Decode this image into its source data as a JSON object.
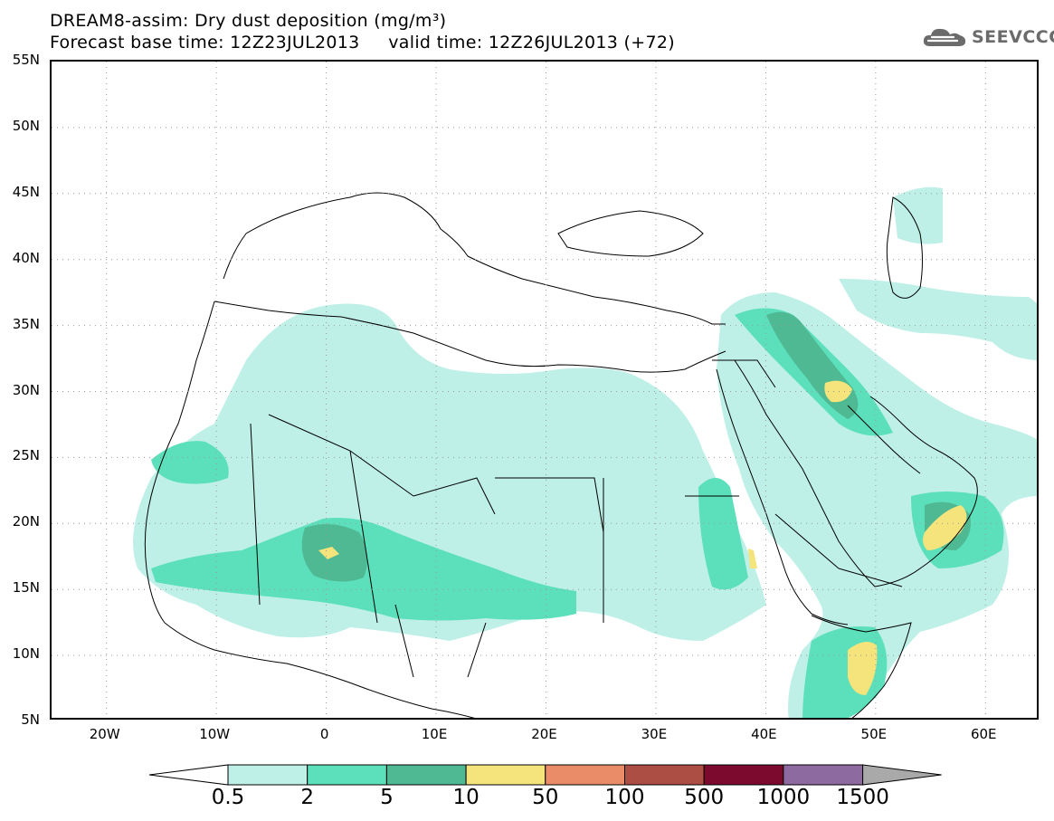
{
  "title": {
    "line1": "DREAM8-assim: Dry dust deposition (mg/m³)",
    "line2": "Forecast base time: 12Z23JUL2013     valid time: 12Z26JUL2013 (+72)"
  },
  "logo": {
    "text": "SEEVCCC",
    "icon": "cloud-icon",
    "color": "#6b6b6b"
  },
  "map": {
    "lat_labels": [
      "55N",
      "50N",
      "45N",
      "40N",
      "35N",
      "30N",
      "25N",
      "20N",
      "15N",
      "10N",
      "5N"
    ],
    "lon_labels": [
      "20W",
      "10W",
      "0",
      "10E",
      "20E",
      "30E",
      "40E",
      "50E",
      "60E"
    ],
    "lat_range": [
      5,
      55
    ],
    "lon_range": [
      -25,
      65
    ],
    "grid": "dotted"
  },
  "legend": {
    "levels": [
      "0.5",
      "2",
      "5",
      "10",
      "50",
      "100",
      "500",
      "1000",
      "1500"
    ],
    "colors": [
      "#bff0e8",
      "#5ce0bb",
      "#4fb993",
      "#f5e47c",
      "#eb8c69",
      "#ac4e43",
      "#7b0a2e",
      "#8d6aa0"
    ],
    "over_color": "#a9a9a9",
    "under_color": "#ffffff"
  }
}
